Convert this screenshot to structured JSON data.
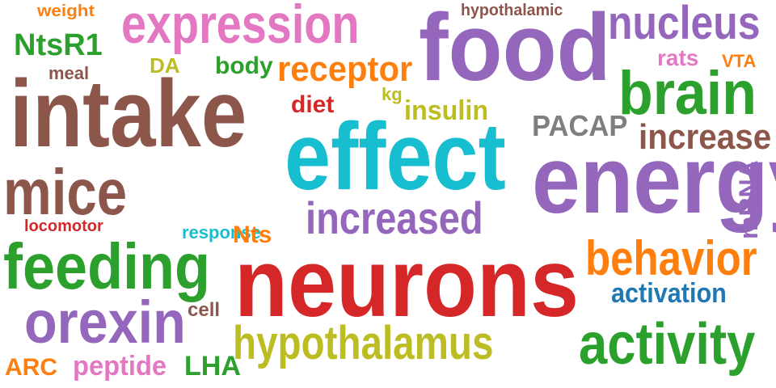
{
  "colors": {
    "blue": "#1f77b4",
    "orange": "#ff7f0e",
    "green": "#2ca02c",
    "red": "#d62728",
    "purple": "#9467bd",
    "brown": "#8c564b",
    "pink": "#e377c2",
    "gray": "#7f7f7f",
    "olive": "#bcbd22",
    "cyan": "#17becf"
  },
  "words": [
    {
      "id": "weight",
      "text": "weight",
      "color": "orange"
    },
    {
      "id": "expression",
      "text": "expression",
      "color": "pink"
    },
    {
      "id": "hypothalamic",
      "text": "hypothalamic",
      "color": "brown"
    },
    {
      "id": "nucleus",
      "text": "nucleus",
      "color": "purple"
    },
    {
      "id": "food",
      "text": "food",
      "color": "purple"
    },
    {
      "id": "ntsr1",
      "text": "NtsR1",
      "color": "green"
    },
    {
      "id": "rats",
      "text": "rats",
      "color": "pink"
    },
    {
      "id": "vta",
      "text": "VTA",
      "color": "orange"
    },
    {
      "id": "da",
      "text": "DA",
      "color": "olive"
    },
    {
      "id": "body",
      "text": "body",
      "color": "green"
    },
    {
      "id": "receptor",
      "text": "receptor",
      "color": "orange"
    },
    {
      "id": "meal",
      "text": "meal",
      "color": "brown"
    },
    {
      "id": "brain",
      "text": "brain",
      "color": "green"
    },
    {
      "id": "kg",
      "text": "kg",
      "color": "olive"
    },
    {
      "id": "intake",
      "text": "intake",
      "color": "brown"
    },
    {
      "id": "diet",
      "text": "diet",
      "color": "red"
    },
    {
      "id": "insulin",
      "text": "insulin",
      "color": "olive"
    },
    {
      "id": "pacap",
      "text": "PACAP",
      "color": "gray"
    },
    {
      "id": "increase",
      "text": "increase",
      "color": "brown"
    },
    {
      "id": "effect",
      "text": "effect",
      "color": "cyan"
    },
    {
      "id": "energy",
      "text": "energy",
      "color": "purple"
    },
    {
      "id": "mice",
      "text": "mice",
      "color": "purple"
    },
    {
      "id": "increased",
      "text": "increased",
      "color": "brown"
    },
    {
      "id": "locomotor",
      "text": "locomotor",
      "color": "purple"
    },
    {
      "id": "response",
      "text": "response",
      "color": "red"
    },
    {
      "id": "nts",
      "text": "Nts",
      "color": "cyan"
    },
    {
      "id": "mrna",
      "text": "mRNA",
      "color": "orange"
    },
    {
      "id": "feeding",
      "text": "feeding",
      "color": "green"
    },
    {
      "id": "neurons",
      "text": "neurons",
      "color": "red"
    },
    {
      "id": "behavior",
      "text": "behavior",
      "color": "orange"
    },
    {
      "id": "activation",
      "text": "activation",
      "color": "blue"
    },
    {
      "id": "orexin",
      "text": "orexin",
      "color": "purple"
    },
    {
      "id": "cell",
      "text": "cell",
      "color": "brown"
    },
    {
      "id": "hypothalamus",
      "text": "hypothalamus",
      "color": "olive"
    },
    {
      "id": "activity",
      "text": "activity",
      "color": "green"
    },
    {
      "id": "arc",
      "text": "ARC",
      "color": "orange"
    },
    {
      "id": "peptide",
      "text": "peptide",
      "color": "pink"
    },
    {
      "id": "lha",
      "text": "LHA",
      "color": "green"
    }
  ]
}
